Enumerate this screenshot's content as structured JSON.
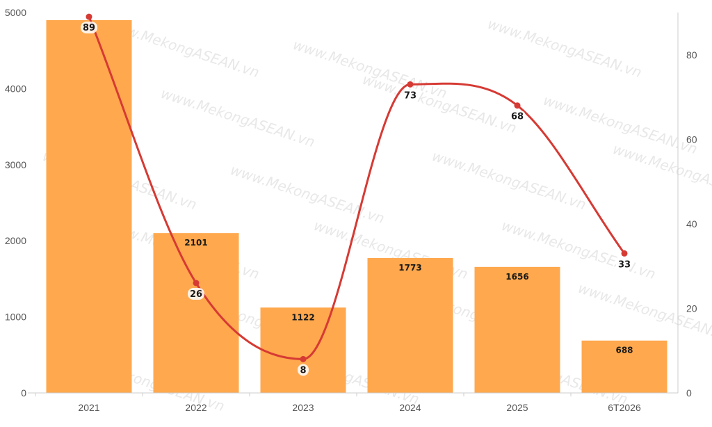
{
  "chart_data": {
    "type": "bar",
    "categories": [
      "2021",
      "2022",
      "2023",
      "2024",
      "2025",
      "6T2026"
    ],
    "series": [
      {
        "type": "bar",
        "axis": "left",
        "values": [
          4900,
          2101,
          1122,
          1773,
          1656,
          688
        ],
        "color": "#ffa84d",
        "labels": [
          "",
          "2101",
          "1122",
          "1773",
          "1656",
          "688"
        ]
      },
      {
        "type": "line",
        "axis": "right",
        "values": [
          89,
          26,
          8,
          73,
          68,
          33
        ],
        "color": "#d63a34",
        "labels": [
          "89",
          "26",
          "8",
          "73",
          "68",
          "33"
        ]
      }
    ],
    "y_left": {
      "min": 0,
      "max": 5000,
      "ticks": [
        "0",
        "1000",
        "2000",
        "3000",
        "4000",
        "5000"
      ]
    },
    "y_right": {
      "min": 0,
      "max": 90,
      "ticks": [
        "0",
        "20",
        "40",
        "60",
        "80"
      ]
    },
    "grid": false,
    "watermark": "www.MekongASEAN.vn"
  }
}
